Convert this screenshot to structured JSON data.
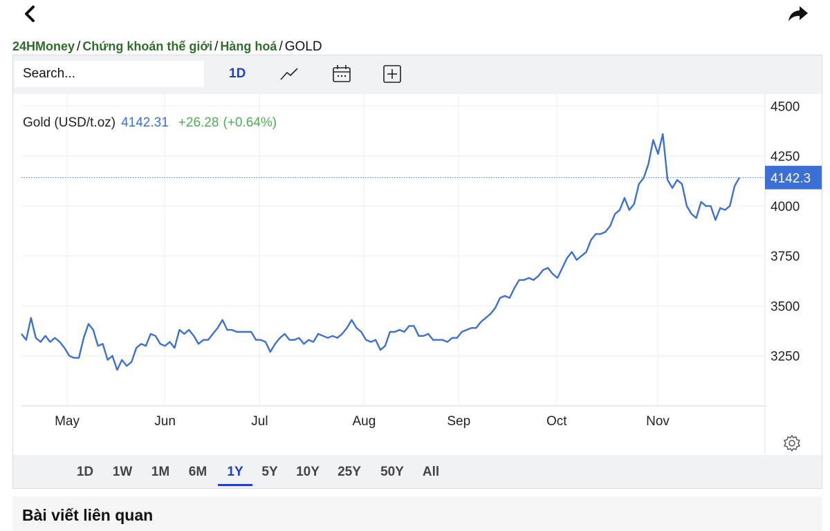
{
  "nav": {
    "back_icon": "chevron-left-icon",
    "share_icon": "share-arrow-icon"
  },
  "breadcrumb": {
    "items": [
      "24HMoney",
      "Chứng khoán thế giới",
      "Hàng hoá"
    ],
    "current": "GOLD",
    "separator": "/"
  },
  "toolbar": {
    "search_placeholder": "Search...",
    "interval": "1D",
    "icons": [
      "line-chart-icon",
      "calendar-icon",
      "add-indicator-icon"
    ]
  },
  "legend": {
    "name": "Gold (USD/t.oz)",
    "price": "4142.31",
    "change": "+26.28",
    "change_pct": "(+0.64%)",
    "price_color": "#3b6fd4",
    "change_color": "#4caf50"
  },
  "ranges": {
    "items": [
      "1D",
      "1W",
      "1M",
      "6M",
      "1Y",
      "5Y",
      "10Y",
      "25Y",
      "50Y",
      "All"
    ],
    "active": "1Y"
  },
  "related": {
    "title": "Bài viết liên quan"
  },
  "chart_data": {
    "type": "line",
    "x_labels": [
      "May",
      "Jun",
      "Jul",
      "Aug",
      "Sep",
      "Oct",
      "Nov"
    ],
    "x_label_days": [
      14,
      44,
      73,
      105,
      134,
      164,
      195
    ],
    "y_ticks": [
      3250,
      3500,
      3750,
      4000,
      4250,
      4500
    ],
    "y_range": [
      3000,
      4560
    ],
    "last_value": 4142.31,
    "last_value_label": "4142.3",
    "line_color": "#3b6fd4",
    "grid": true,
    "series": [
      {
        "name": "Gold (USD/t.oz)",
        "values": [
          3360,
          3330,
          3440,
          3340,
          3320,
          3350,
          3320,
          3340,
          3320,
          3290,
          3250,
          3240,
          3240,
          3340,
          3410,
          3380,
          3300,
          3310,
          3230,
          3250,
          3180,
          3230,
          3200,
          3220,
          3290,
          3310,
          3300,
          3360,
          3350,
          3310,
          3300,
          3320,
          3290,
          3380,
          3360,
          3380,
          3350,
          3310,
          3330,
          3330,
          3360,
          3390,
          3430,
          3380,
          3380,
          3370,
          3370,
          3370,
          3370,
          3330,
          3330,
          3320,
          3270,
          3310,
          3340,
          3360,
          3330,
          3330,
          3340,
          3310,
          3330,
          3320,
          3360,
          3350,
          3340,
          3350,
          3340,
          3360,
          3390,
          3430,
          3390,
          3370,
          3330,
          3320,
          3330,
          3280,
          3300,
          3370,
          3370,
          3380,
          3370,
          3400,
          3400,
          3350,
          3350,
          3360,
          3330,
          3330,
          3330,
          3320,
          3340,
          3340,
          3370,
          3380,
          3390,
          3390,
          3420,
          3440,
          3460,
          3490,
          3540,
          3550,
          3540,
          3590,
          3630,
          3630,
          3640,
          3630,
          3650,
          3680,
          3690,
          3660,
          3640,
          3690,
          3740,
          3770,
          3730,
          3750,
          3770,
          3830,
          3860,
          3860,
          3870,
          3900,
          3960,
          3980,
          4040,
          3980,
          4010,
          4110,
          4140,
          4210,
          4330,
          4260,
          4360,
          4130,
          4090,
          4130,
          4110,
          4000,
          3960,
          3940,
          4020,
          4000,
          4000,
          3930,
          3990,
          3980,
          4000,
          4100,
          4142.31
        ]
      }
    ]
  }
}
